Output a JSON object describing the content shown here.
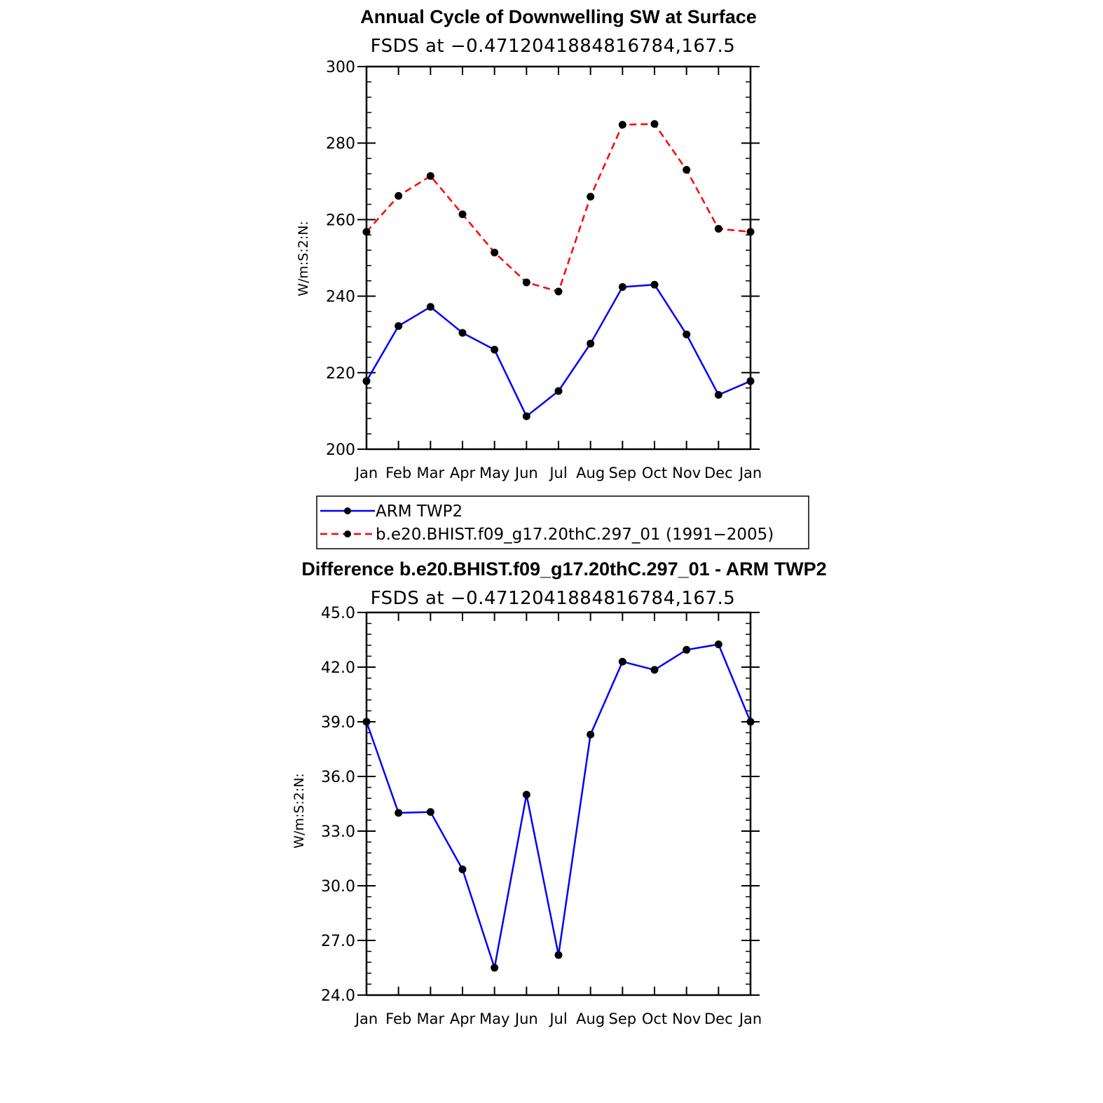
{
  "chart_data": [
    {
      "type": "line",
      "title": "Annual Cycle of Downwelling SW at Surface",
      "subtitle": "FSDS at −0.4712041884816784,167.5",
      "ylabel": "W/m:S:2:N:",
      "ylim": [
        200,
        300
      ],
      "yticks": [
        "200",
        "220",
        "240",
        "260",
        "280",
        "300"
      ],
      "categories": [
        "Jan",
        "Feb",
        "Mar",
        "Apr",
        "May",
        "Jun",
        "Jul",
        "Aug",
        "Sep",
        "Oct",
        "Nov",
        "Dec",
        "Jan"
      ],
      "grid": false,
      "series": [
        {
          "name": "ARM TWP2",
          "color": "#0000ff",
          "dash": "solid",
          "values": [
            217.8,
            232.2,
            237.2,
            230.4,
            226.0,
            208.6,
            215.2,
            227.6,
            242.4,
            243.0,
            230.0,
            214.2,
            217.8
          ]
        },
        {
          "name": "b.e20.BHIST.f09_g17.20thC.297_01 (1991−2005)",
          "color": "#ff0000",
          "dash": "dashed",
          "values": [
            256.8,
            266.2,
            271.4,
            261.4,
            251.4,
            243.6,
            241.2,
            266.0,
            284.8,
            285.0,
            273.0,
            257.6,
            256.8
          ]
        }
      ]
    },
    {
      "type": "line",
      "title": "Difference b.e20.BHIST.f09_g17.20thC.297_01 - ARM TWP2",
      "subtitle": "FSDS at −0.4712041884816784,167.5",
      "ylabel": "W/m:S:2:N:",
      "ylim": [
        24.0,
        45.0
      ],
      "yticks": [
        "24.0",
        "27.0",
        "30.0",
        "33.0",
        "36.0",
        "39.0",
        "42.0",
        "45.0"
      ],
      "categories": [
        "Jan",
        "Feb",
        "Mar",
        "Apr",
        "May",
        "Jun",
        "Jul",
        "Aug",
        "Sep",
        "Oct",
        "Nov",
        "Dec",
        "Jan"
      ],
      "grid": false,
      "series": [
        {
          "color": "#0000ff",
          "dash": "solid",
          "values": [
            39.0,
            34.0,
            34.05,
            30.9,
            25.5,
            35.0,
            26.2,
            38.3,
            42.3,
            41.85,
            42.95,
            43.25,
            39.0
          ]
        }
      ]
    }
  ],
  "legend": {
    "placement": "between-plots",
    "entries": [
      "ARM TWP2",
      "b.e20.BHIST.f09_g17.20thC.297_01 (1991−2005)"
    ]
  }
}
